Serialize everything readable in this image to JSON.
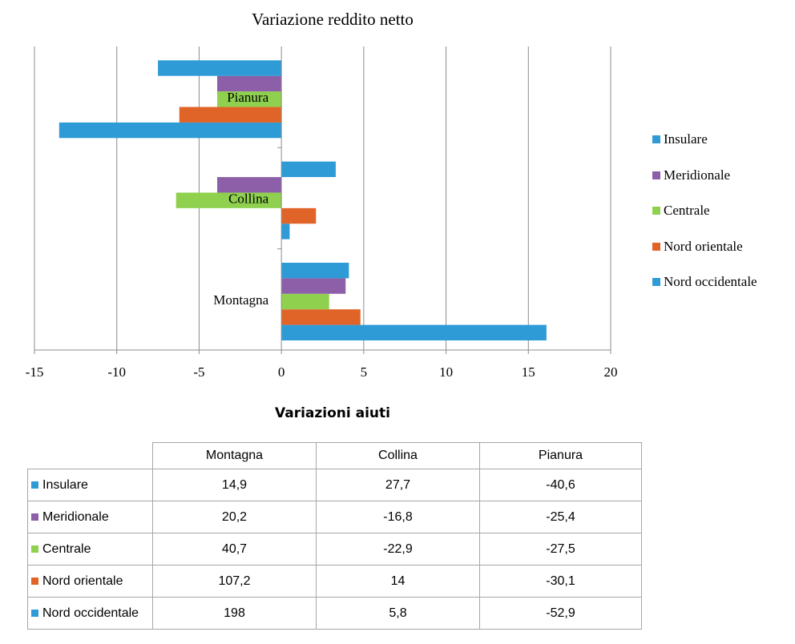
{
  "chart_data": [
    {
      "type": "bar",
      "orientation": "horizontal",
      "title": "Variazione reddito netto",
      "categories": [
        "Montagna",
        "Collina",
        "Pianura"
      ],
      "series": [
        {
          "name": "Nord occidentale",
          "color": "#2e9bd6",
          "values": [
            16.1,
            0.5,
            -13.5
          ]
        },
        {
          "name": "Nord orientale",
          "color": "#e06328",
          "values": [
            4.8,
            2.1,
            -6.2
          ]
        },
        {
          "name": "Centrale",
          "color": "#8fd14f",
          "values": [
            2.9,
            -6.4,
            -3.9
          ]
        },
        {
          "name": "Meridionale",
          "color": "#8c5fa8",
          "values": [
            3.9,
            -3.9,
            -3.9
          ]
        },
        {
          "name": "Insulare",
          "color": "#2e9bd6",
          "values": [
            4.1,
            3.3,
            -7.5
          ]
        }
      ],
      "xlim": [
        -15,
        20
      ],
      "xticks": [
        "-15",
        "-10",
        "-5",
        "0",
        "5",
        "10",
        "15",
        "20"
      ],
      "grid": true,
      "legend_position": "right"
    },
    {
      "type": "table",
      "title": "Variazioni aiuti",
      "columns": [
        "Montagna",
        "Collina",
        "Pianura"
      ],
      "rows": [
        {
          "label": "Insulare",
          "color": "#2e9bd6",
          "values": [
            "14,9",
            "27,7",
            "-40,6"
          ]
        },
        {
          "label": "Meridionale",
          "color": "#8c5fa8",
          "values": [
            "20,2",
            "-16,8",
            "-25,4"
          ]
        },
        {
          "label": "Centrale",
          "color": "#8fd14f",
          "values": [
            "40,7",
            "-22,9",
            "-27,5"
          ]
        },
        {
          "label": "Nord orientale",
          "color": "#e06328",
          "values": [
            "107,2",
            "14",
            "-30,1"
          ]
        },
        {
          "label": "Nord occidentale",
          "color": "#2e9bd6",
          "values": [
            "198",
            "5,8",
            "-52,9"
          ]
        }
      ]
    }
  ]
}
